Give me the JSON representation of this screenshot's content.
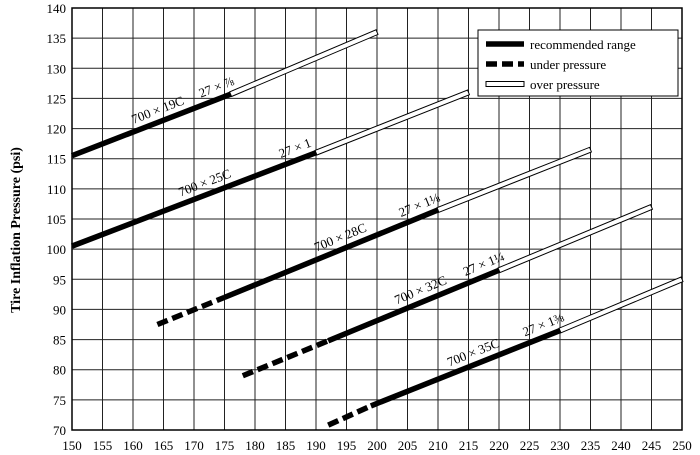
{
  "chart_data": {
    "type": "line",
    "title": "",
    "xlabel": "",
    "ylabel": "Tire Inflation Pressure (psi)",
    "xlim": [
      150,
      250
    ],
    "ylim": [
      70,
      140
    ],
    "x_ticks": [
      150,
      155,
      160,
      165,
      170,
      175,
      180,
      185,
      190,
      195,
      200,
      205,
      210,
      215,
      220,
      225,
      230,
      235,
      240,
      245,
      250
    ],
    "y_ticks": [
      70,
      75,
      80,
      85,
      90,
      95,
      100,
      105,
      110,
      115,
      120,
      125,
      130,
      135,
      140
    ],
    "grid": true,
    "legend_position": "top-right",
    "legend": [
      {
        "key": "recommended",
        "label": "recommended range"
      },
      {
        "key": "under",
        "label": "under pressure"
      },
      {
        "key": "over",
        "label": "over pressure"
      }
    ],
    "series": [
      {
        "name": "700 × 19C",
        "alt_name": "27 × ⅞",
        "under": [],
        "recommended": [
          [
            150,
            115.5
          ],
          [
            176,
            125.7
          ]
        ],
        "over": [
          [
            176,
            125.7
          ],
          [
            200,
            136
          ]
        ]
      },
      {
        "name": "700 × 25C",
        "alt_name": "27 × 1",
        "under": [],
        "recommended": [
          [
            150,
            100.5
          ],
          [
            190,
            116
          ]
        ],
        "over": [
          [
            190,
            116
          ],
          [
            215,
            126
          ]
        ]
      },
      {
        "name": "700 × 28C",
        "alt_name": "27 × 1⅛",
        "under": [
          [
            164,
            87.5
          ],
          [
            175,
            92
          ]
        ],
        "recommended": [
          [
            175,
            92
          ],
          [
            210,
            106.5
          ]
        ],
        "over": [
          [
            210,
            106.5
          ],
          [
            235,
            116.5
          ]
        ]
      },
      {
        "name": "700 × 32C",
        "alt_name": "27 × 1¼",
        "under": [
          [
            178,
            79
          ],
          [
            192,
            84.8
          ]
        ],
        "recommended": [
          [
            192,
            84.8
          ],
          [
            220,
            96.5
          ]
        ],
        "over": [
          [
            220,
            96.5
          ],
          [
            245,
            107
          ]
        ]
      },
      {
        "name": "700 × 35C",
        "alt_name": "27 × 1⅜",
        "under": [
          [
            192,
            70.8
          ],
          [
            199,
            74
          ]
        ],
        "recommended": [
          [
            199,
            74
          ],
          [
            230,
            86.5
          ]
        ],
        "over": [
          [
            230,
            86.5
          ],
          [
            250,
            95
          ]
        ]
      }
    ]
  }
}
